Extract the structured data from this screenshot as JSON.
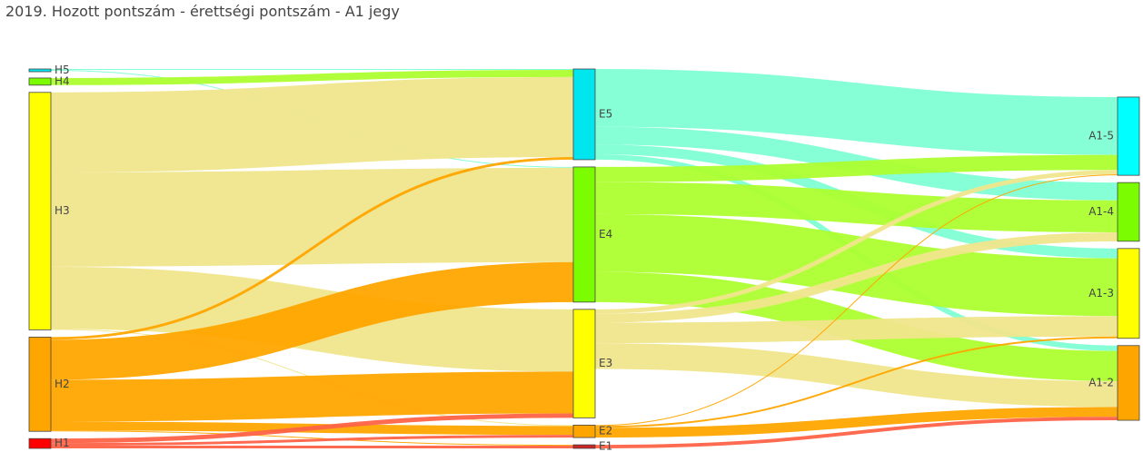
{
  "chart_data": {
    "type": "sankey",
    "title": "2019. Hozott pontszám - érettségi pontszám - A1 jegy",
    "nodes": [
      {
        "id": "H5",
        "label": "H5",
        "color": "#00e5ee"
      },
      {
        "id": "H4",
        "label": "H4",
        "color": "#7cfc00"
      },
      {
        "id": "H3",
        "label": "H3",
        "color": "#ffff00"
      },
      {
        "id": "H2",
        "label": "H2",
        "color": "#ffa500"
      },
      {
        "id": "H1",
        "label": "H1",
        "color": "#ff0000"
      },
      {
        "id": "E5",
        "label": "E5",
        "color": "#00e5ee"
      },
      {
        "id": "E4",
        "label": "E4",
        "color": "#7cfc00"
      },
      {
        "id": "E3",
        "label": "E3",
        "color": "#ffff00"
      },
      {
        "id": "E2",
        "label": "E2",
        "color": "#ffa500"
      },
      {
        "id": "E1",
        "label": "E1",
        "color": "#cd2626"
      },
      {
        "id": "A5",
        "label": "A1-5",
        "color": "#00ffff"
      },
      {
        "id": "A4",
        "label": "A1-4",
        "color": "#7cfc00"
      },
      {
        "id": "A3",
        "label": "A1-3",
        "color": "#ffff00"
      },
      {
        "id": "A2",
        "label": "A1-2",
        "color": "#ffa500"
      }
    ],
    "links": [
      {
        "source": "H5",
        "target": "E5",
        "value": 1,
        "color": "#7fffd4"
      },
      {
        "source": "H5",
        "target": "E4",
        "value": 1,
        "color": "#7fffd4"
      },
      {
        "source": "H4",
        "target": "E5",
        "value": 8,
        "color": "#adff2f"
      },
      {
        "source": "H3",
        "target": "E5",
        "value": 90,
        "color": "#f0e68c"
      },
      {
        "source": "H3",
        "target": "E4",
        "value": 106,
        "color": "#f0e68c"
      },
      {
        "source": "H3",
        "target": "E3",
        "value": 70,
        "color": "#f0e68c"
      },
      {
        "source": "H3",
        "target": "E2",
        "value": 1,
        "color": "#f0e68c"
      },
      {
        "source": "H2",
        "target": "E5",
        "value": 3,
        "color": "#ffa500"
      },
      {
        "source": "H2",
        "target": "E4",
        "value": 45,
        "color": "#ffa500"
      },
      {
        "source": "H2",
        "target": "E3",
        "value": 47,
        "color": "#ffa500"
      },
      {
        "source": "H2",
        "target": "E2",
        "value": 10,
        "color": "#ffa500"
      },
      {
        "source": "H2",
        "target": "E1",
        "value": 1,
        "color": "#ffa500"
      },
      {
        "source": "H1",
        "target": "E3",
        "value": 5,
        "color": "#ff6347"
      },
      {
        "source": "H1",
        "target": "E2",
        "value": 3,
        "color": "#ff6347"
      },
      {
        "source": "H1",
        "target": "E1",
        "value": 3,
        "color": "#ff6347"
      },
      {
        "source": "E5",
        "target": "A5",
        "value": 65,
        "color": "#7fffd4"
      },
      {
        "source": "E5",
        "target": "A4",
        "value": 20,
        "color": "#7fffd4"
      },
      {
        "source": "E5",
        "target": "A3",
        "value": 11,
        "color": "#7fffd4"
      },
      {
        "source": "E5",
        "target": "A2",
        "value": 6,
        "color": "#7fffd4"
      },
      {
        "source": "E4",
        "target": "A5",
        "value": 17,
        "color": "#adff2f"
      },
      {
        "source": "E4",
        "target": "A4",
        "value": 36,
        "color": "#adff2f"
      },
      {
        "source": "E4",
        "target": "A3",
        "value": 65,
        "color": "#adff2f"
      },
      {
        "source": "E4",
        "target": "A2",
        "value": 34,
        "color": "#adff2f"
      },
      {
        "source": "E3",
        "target": "A5",
        "value": 5,
        "color": "#f0e68c"
      },
      {
        "source": "E3",
        "target": "A4",
        "value": 10,
        "color": "#f0e68c"
      },
      {
        "source": "E3",
        "target": "A3",
        "value": 23,
        "color": "#f0e68c"
      },
      {
        "source": "E3",
        "target": "A2",
        "value": 29,
        "color": "#f0e68c"
      },
      {
        "source": "E2",
        "target": "A5",
        "value": 1,
        "color": "#ffa500"
      },
      {
        "source": "E2",
        "target": "A3",
        "value": 2,
        "color": "#ffa500"
      },
      {
        "source": "E2",
        "target": "A2",
        "value": 11,
        "color": "#ffa500"
      },
      {
        "source": "E1",
        "target": "A2",
        "value": 4,
        "color": "#ff6347"
      }
    ]
  }
}
